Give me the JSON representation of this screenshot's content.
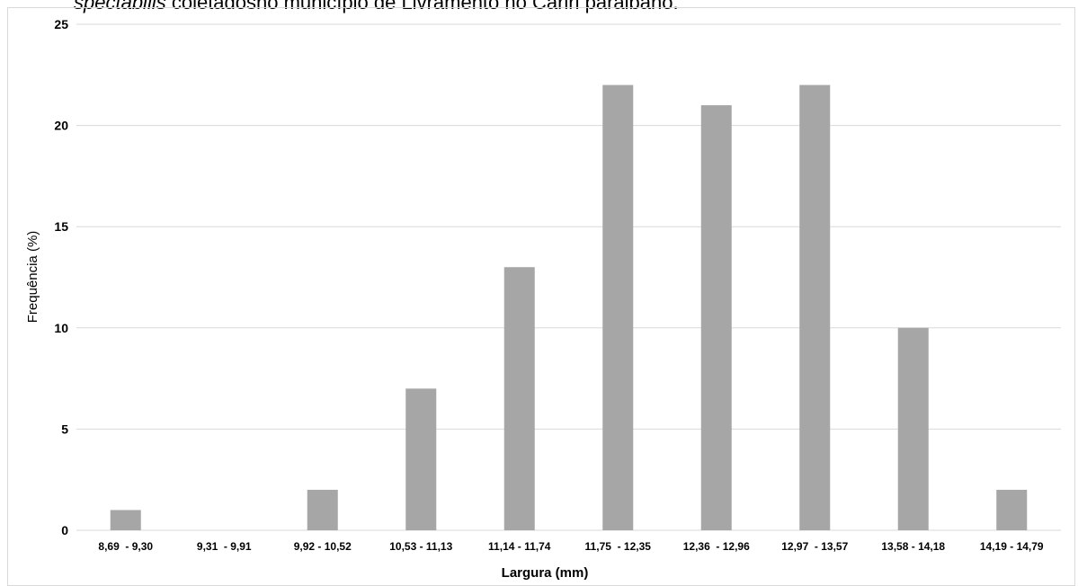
{
  "caption": {
    "italic_part": "spectabilis",
    "rest": " coletadosno município de Livramento no Cariri paraibano."
  },
  "chart_data": {
    "type": "bar",
    "title": "",
    "xlabel": "Largura (mm)",
    "ylabel": "Frequência  (%)",
    "ylim": [
      0,
      25
    ],
    "yticks": [
      0,
      5,
      10,
      15,
      20,
      25
    ],
    "grid": true,
    "categories": [
      "8,69  - 9,30",
      "9,31  - 9,91",
      "9,92 - 10,52",
      "10,53 - 11,13",
      "11,14 - 11,74",
      "11,75  - 12,35",
      "12,36  - 12,96",
      "12,97  - 13,57",
      "13,58 - 14,18",
      "14,19 - 14,79"
    ],
    "values": [
      1,
      0,
      2,
      7,
      13,
      22,
      21,
      22,
      10,
      2
    ],
    "colors": {
      "bar": "#a6a6a6",
      "grid": "#d9d9d9",
      "axis": "#d9d9d9"
    }
  }
}
